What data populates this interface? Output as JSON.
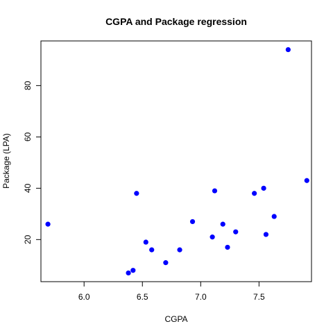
{
  "chart_data": {
    "type": "scatter",
    "title": "CGPA and Package regression",
    "xlabel": "CGPA",
    "ylabel": "Package (LPA)",
    "xlim": [
      5.63,
      7.95
    ],
    "ylim": [
      3.6,
      97.4
    ],
    "x_ticks": [
      6.0,
      6.5,
      7.0,
      7.5
    ],
    "x_tick_labels": [
      "6.0",
      "6.5",
      "7.0",
      "7.5"
    ],
    "y_ticks": [
      20,
      40,
      60,
      80
    ],
    "y_tick_labels": [
      "20",
      "40",
      "60",
      "80"
    ],
    "point_color": "#0000ff",
    "grid": false,
    "points": [
      {
        "x": 5.69,
        "y": 26
      },
      {
        "x": 6.38,
        "y": 7
      },
      {
        "x": 6.42,
        "y": 8
      },
      {
        "x": 6.45,
        "y": 38
      },
      {
        "x": 6.53,
        "y": 19
      },
      {
        "x": 6.58,
        "y": 16
      },
      {
        "x": 6.7,
        "y": 11
      },
      {
        "x": 6.82,
        "y": 16
      },
      {
        "x": 6.93,
        "y": 27
      },
      {
        "x": 7.1,
        "y": 21
      },
      {
        "x": 7.12,
        "y": 39
      },
      {
        "x": 7.19,
        "y": 26
      },
      {
        "x": 7.23,
        "y": 17
      },
      {
        "x": 7.3,
        "y": 23
      },
      {
        "x": 7.46,
        "y": 38
      },
      {
        "x": 7.54,
        "y": 40
      },
      {
        "x": 7.56,
        "y": 22
      },
      {
        "x": 7.63,
        "y": 29
      },
      {
        "x": 7.75,
        "y": 94
      },
      {
        "x": 7.91,
        "y": 43
      }
    ]
  }
}
